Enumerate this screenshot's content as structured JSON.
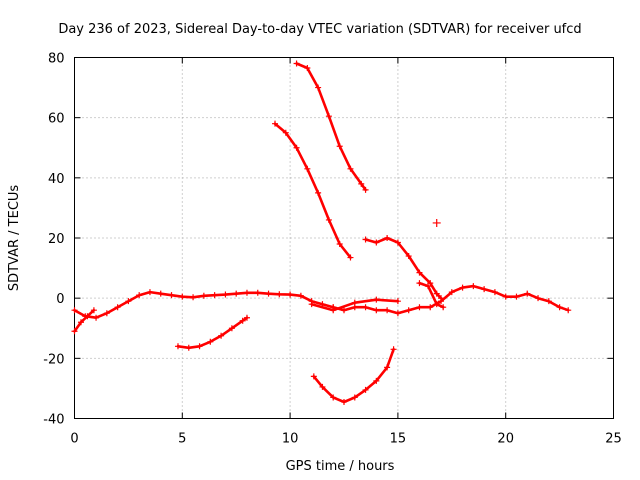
{
  "chart_data": {
    "type": "scatter",
    "title": "Day 236 of 2023, Sidereal Day-to-day VTEC variation (SDTVAR) for receiver ufcd",
    "xlabel": "GPS time / hours",
    "ylabel": "SDTVAR / TECUs",
    "xlim": [
      0,
      25
    ],
    "ylim": [
      -40,
      80
    ],
    "xticks": [
      0,
      5,
      10,
      15,
      20,
      25
    ],
    "yticks": [
      -40,
      -20,
      0,
      20,
      40,
      60,
      80
    ],
    "xtick_labels": [
      "0",
      "5",
      "10",
      "15",
      "20",
      "25"
    ],
    "ytick_labels": [
      "-40",
      "-20",
      "0",
      "20",
      "40",
      "60",
      "80"
    ],
    "grid": true,
    "marker": "+",
    "color": "#ff0000",
    "series": [
      {
        "name": "arc-baseline-main",
        "x": [
          0.0,
          0.5,
          1.0,
          1.5,
          2.0,
          2.5,
          3.0,
          3.5,
          4.0,
          4.5,
          5.0,
          5.5,
          6.0,
          6.5,
          7.0,
          7.5,
          8.0,
          8.5,
          9.0,
          9.5,
          10.0,
          10.5,
          11.0,
          11.5,
          12.0
        ],
        "y": [
          -4.0,
          -6.0,
          -6.5,
          -5.0,
          -3.0,
          -1.0,
          1.0,
          2.0,
          1.5,
          1.0,
          0.5,
          0.3,
          0.8,
          1.0,
          1.2,
          1.5,
          1.8,
          1.8,
          1.5,
          1.3,
          1.2,
          0.8,
          -1.0,
          -2.0,
          -3.0
        ]
      },
      {
        "name": "arc-baseline-left",
        "x": [
          0.0,
          0.3,
          0.6,
          0.9
        ],
        "y": [
          -11.0,
          -8.0,
          -6.0,
          -4.0
        ]
      },
      {
        "name": "arc-baseline-right",
        "x": [
          12.0,
          12.5,
          13.0,
          13.5,
          14.0,
          14.5,
          15.0,
          15.5,
          16.0,
          16.5,
          17.0,
          17.5,
          18.0,
          18.5,
          19.0,
          19.5,
          20.0,
          20.5,
          21.0,
          21.5,
          22.0,
          22.5,
          22.9
        ],
        "y": [
          -3.0,
          -4.0,
          -3.0,
          -3.0,
          -4.0,
          -4.0,
          -5.0,
          -4.0,
          -3.0,
          -3.0,
          -1.0,
          2.0,
          3.5,
          4.0,
          3.0,
          2.0,
          0.5,
          0.5,
          1.5,
          0.0,
          -1.0,
          -3.0,
          -4.0
        ]
      },
      {
        "name": "arc-lower-left",
        "x": [
          4.8,
          5.3,
          5.8,
          6.3,
          6.8,
          7.3,
          7.8,
          8.0
        ],
        "y": [
          -16.0,
          -16.5,
          -16.0,
          -14.5,
          -12.5,
          -10.0,
          -7.5,
          -6.5
        ]
      },
      {
        "name": "arc-dip",
        "x": [
          11.1,
          11.5,
          12.0,
          12.5,
          13.0,
          13.5,
          14.0,
          14.5,
          14.8
        ],
        "y": [
          -26.0,
          -29.5,
          -33.0,
          -34.5,
          -33.0,
          -30.5,
          -27.5,
          -23.0,
          -17.0
        ]
      },
      {
        "name": "arc-high-top",
        "x": [
          10.3,
          10.8,
          11.3,
          11.8,
          12.3,
          12.8,
          13.3,
          13.5
        ],
        "y": [
          78.0,
          76.5,
          70.0,
          60.5,
          50.5,
          43.0,
          38.0,
          36.0
        ]
      },
      {
        "name": "arc-high-mid",
        "x": [
          9.3,
          9.8,
          10.3,
          10.8,
          11.3,
          11.8,
          12.3,
          12.8
        ],
        "y": [
          58.0,
          55.0,
          50.0,
          43.0,
          35.0,
          26.0,
          18.0,
          13.5
        ]
      },
      {
        "name": "arc-mid-right",
        "x": [
          13.5,
          14.0,
          14.5,
          15.0,
          15.5,
          16.0,
          16.5,
          16.8,
          17.0
        ],
        "y": [
          19.5,
          18.5,
          20.0,
          18.5,
          14.0,
          8.5,
          5.0,
          1.5,
          0.0
        ]
      },
      {
        "name": "arc-cross-short",
        "x": [
          11.0,
          12.0,
          13.0,
          14.0,
          15.0
        ],
        "y": [
          -2.0,
          -4.0,
          -1.5,
          -0.5,
          -1.0
        ]
      },
      {
        "name": "arc-upper-right-cross",
        "x": [
          16.0,
          16.4,
          16.8,
          17.1
        ],
        "y": [
          5.0,
          4.0,
          -2.0,
          -3.0
        ]
      }
    ],
    "points": [
      {
        "x": 16.8,
        "y": 25.0
      }
    ]
  }
}
